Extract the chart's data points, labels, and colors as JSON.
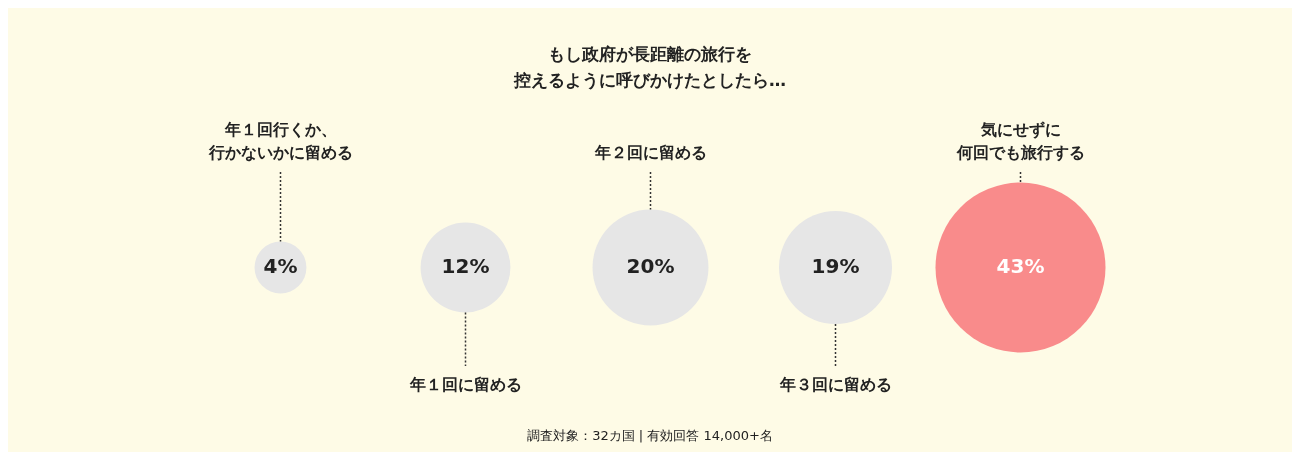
{
  "chart_data": {
    "type": "other",
    "title": "もし政府が長距離の旅行を控えるように呼びかけたとしたら…",
    "categories": [
      "年１回行くか、行かないかに留める",
      "年１回に留める",
      "年２回に留める",
      "年３回に留める",
      "気にせずに何回でも旅行する"
    ],
    "values": [
      4,
      12,
      20,
      19,
      43
    ],
    "value_labels": [
      "4%",
      "12%",
      "20%",
      "19%",
      "43%"
    ],
    "colors": [
      "#e6e6e6",
      "#e6e6e6",
      "#e6e6e6",
      "#e6e6e6",
      "#f98b8b"
    ],
    "legend": false,
    "annotations": [
      "調査対象：32カ国 | 有効回答 14,000+名"
    ]
  }
}
